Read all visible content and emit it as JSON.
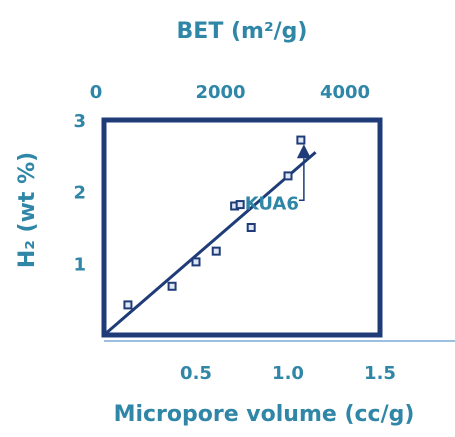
{
  "chart_data": {
    "type": "scatter",
    "top_axis": {
      "label": "BET (m²/g)",
      "ticks": [
        {
          "value": 0,
          "label": "0"
        },
        {
          "value": 2000,
          "label": "2000"
        },
        {
          "value": 4000,
          "label": "4000"
        }
      ]
    },
    "xlabel": "Micropore volume (cc/g)",
    "x_ticks": [
      {
        "value": 0.5,
        "label": "0.5"
      },
      {
        "value": 1.0,
        "label": "1.0"
      },
      {
        "value": 1.5,
        "label": "1.5"
      }
    ],
    "xlim": [
      0,
      1.5
    ],
    "ylabel": "H₂ (wt %)",
    "y_ticks": [
      {
        "value": 1,
        "label": "1"
      },
      {
        "value": 2,
        "label": "2"
      },
      {
        "value": 3,
        "label": "3"
      }
    ],
    "ylim": [
      0,
      3
    ],
    "series": [
      {
        "points": [
          {
            "x": 0.13,
            "y": 0.42
          },
          {
            "x": 0.37,
            "y": 0.68
          },
          {
            "x": 0.5,
            "y": 1.02
          },
          {
            "x": 0.61,
            "y": 1.17
          },
          {
            "x": 0.71,
            "y": 1.8
          },
          {
            "x": 0.74,
            "y": 1.82
          },
          {
            "x": 0.8,
            "y": 1.5
          },
          {
            "x": 1.0,
            "y": 2.22
          },
          {
            "x": 1.07,
            "y": 2.72
          }
        ]
      }
    ],
    "fit_line": {
      "x": [
        0.0,
        1.15
      ],
      "y": [
        0.0,
        2.55
      ]
    },
    "annotations": [
      {
        "text": "KUA6",
        "x": 1.07,
        "y": 2.55
      }
    ],
    "grid": false,
    "colors": {
      "text": "#2f86a6",
      "axes": "#1f3c78",
      "marker": "#1f3c78",
      "line": "#1f3c78"
    }
  }
}
